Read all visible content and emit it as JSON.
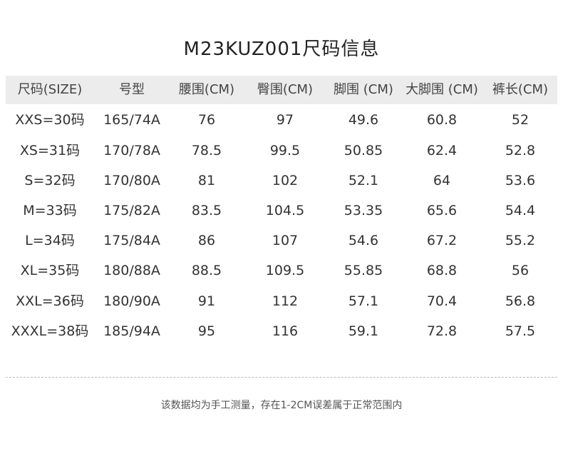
{
  "header": {
    "title": "M23KUZ001尺码信息"
  },
  "table": {
    "columns": [
      "尺码(SIZE)",
      "号型",
      "腰围(CM)",
      "臀围(CM)",
      "脚围 (CM)",
      "大脚围 (CM)",
      "裤长(CM)"
    ],
    "rows": [
      [
        "XXS=30码",
        "165/74A",
        "76",
        "97",
        "49.6",
        "60.8",
        "52"
      ],
      [
        "XS=31码",
        "170/78A",
        "78.5",
        "99.5",
        "50.85",
        "62.4",
        "52.8"
      ],
      [
        "S=32码",
        "170/80A",
        "81",
        "102",
        "52.1",
        "64",
        "53.6"
      ],
      [
        "M=33码",
        "175/82A",
        "83.5",
        "104.5",
        "53.35",
        "65.6",
        "54.4"
      ],
      [
        "L=34码",
        "175/84A",
        "86",
        "107",
        "54.6",
        "67.2",
        "55.2"
      ],
      [
        "XL=35码",
        "180/88A",
        "88.5",
        "109.5",
        "55.85",
        "68.8",
        "56"
      ],
      [
        "XXL=36码",
        "180/90A",
        "91",
        "112",
        "57.1",
        "70.4",
        "56.8"
      ],
      [
        "XXXL=38码",
        "185/94A",
        "95",
        "116",
        "59.1",
        "72.8",
        "57.5"
      ]
    ]
  },
  "footnote": "该数据均为手工测量，存在1-2CM误差属于正常范围内"
}
